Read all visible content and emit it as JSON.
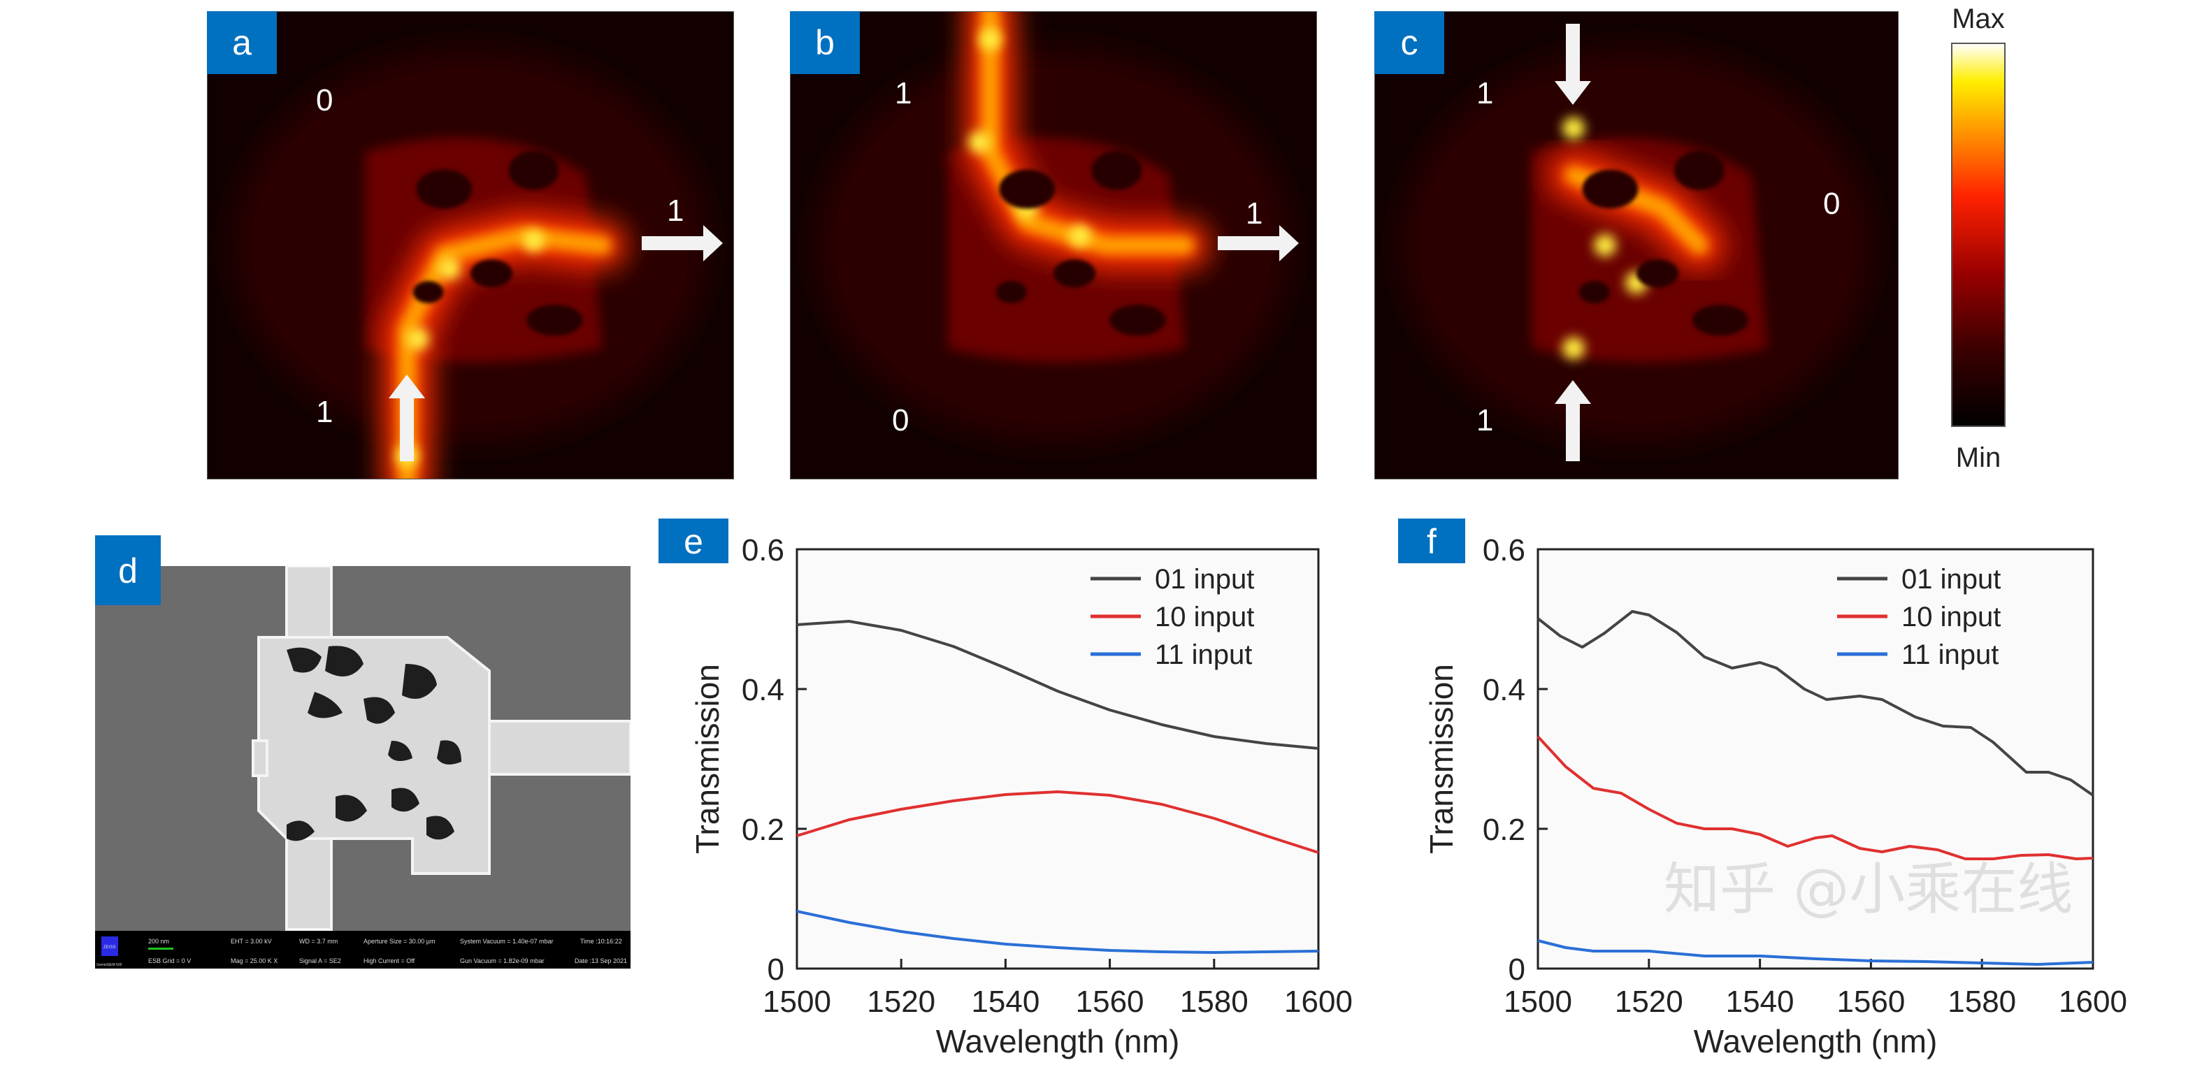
{
  "panels": {
    "a": {
      "label": "a",
      "port_top": "0",
      "port_right": "1",
      "port_bottom": "1",
      "arrows": [
        "up-bottom",
        "right"
      ]
    },
    "b": {
      "label": "b",
      "port_top": "1",
      "port_right": "1",
      "port_bottom": "0",
      "arrows": [
        "right"
      ]
    },
    "c": {
      "label": "c",
      "port_top": "1",
      "port_right": "0",
      "port_bottom": "1",
      "arrows": [
        "down-top",
        "up-bottom"
      ]
    },
    "d": {
      "label": "d"
    },
    "e": {
      "label": "e"
    },
    "f": {
      "label": "f"
    }
  },
  "colorbar": {
    "max_label": "Max",
    "min_label": "Min",
    "colormap": [
      "#000000",
      "#3a0000",
      "#9a0000",
      "#ff2200",
      "#ff8800",
      "#ffee00",
      "#ffffff"
    ]
  },
  "sem_info": {
    "logo": "ZEISS",
    "model": "GeminiSEM 500",
    "scale": "200 nm",
    "eht": "EHT = 3.00 kV",
    "esb": "ESB Grid = 0 V",
    "wd": "WD = 3.7 mm",
    "mag": "Mag = 25.00 K X",
    "signal": "Signal A = SE2",
    "aperture": "Aperture Size = 30.00 µm",
    "high_current": "High Current = Off",
    "sys_vac": "System Vacuum = 1.40e-07 mbar",
    "gun_vac": "Gun Vacuum = 1.82e-09 mbar",
    "time": "Time :10:16:22",
    "date": "Date :13 Sep 2021"
  },
  "watermark": "知乎 @小乘在线",
  "accent_color": "#0070C0",
  "chart_data": [
    {
      "type": "line",
      "panel": "e",
      "xlabel": "Wavelength (nm)",
      "ylabel": "Transmission",
      "xlim": [
        1500,
        1600
      ],
      "ylim": [
        0,
        0.6
      ],
      "xticks": [
        "1500",
        "1520",
        "1540",
        "1560",
        "1580",
        "1600"
      ],
      "yticks": [
        "0",
        "0.2",
        "0.4",
        "0.6"
      ],
      "legend_position": "top-right",
      "grid": false,
      "series": [
        {
          "name": "01 input",
          "color": "#444444",
          "x": [
            1500,
            1510,
            1520,
            1530,
            1540,
            1550,
            1560,
            1570,
            1580,
            1590,
            1600
          ],
          "y": [
            0.492,
            0.497,
            0.484,
            0.461,
            0.43,
            0.397,
            0.37,
            0.349,
            0.332,
            0.322,
            0.315
          ]
        },
        {
          "name": "10 input",
          "color": "#e03030",
          "x": [
            1500,
            1510,
            1520,
            1530,
            1540,
            1550,
            1560,
            1570,
            1580,
            1590,
            1600
          ],
          "y": [
            0.19,
            0.213,
            0.228,
            0.24,
            0.249,
            0.253,
            0.248,
            0.235,
            0.215,
            0.19,
            0.166
          ]
        },
        {
          "name": "11 input",
          "color": "#2a6fd6",
          "x": [
            1500,
            1510,
            1520,
            1530,
            1540,
            1550,
            1560,
            1570,
            1580,
            1590,
            1600
          ],
          "y": [
            0.082,
            0.066,
            0.053,
            0.043,
            0.035,
            0.03,
            0.026,
            0.024,
            0.023,
            0.024,
            0.025
          ]
        }
      ]
    },
    {
      "type": "line",
      "panel": "f",
      "xlabel": "Wavelength (nm)",
      "ylabel": "Transmission",
      "xlim": [
        1500,
        1600
      ],
      "ylim": [
        0,
        0.6
      ],
      "xticks": [
        "1500",
        "1520",
        "1540",
        "1560",
        "1580",
        "1600"
      ],
      "yticks": [
        "0",
        "0.2",
        "0.4",
        "0.6"
      ],
      "legend_position": "top-right",
      "grid": false,
      "series": [
        {
          "name": "01 input",
          "color": "#444444",
          "x": [
            1500,
            1504,
            1508,
            1512,
            1517,
            1520,
            1525,
            1530,
            1535,
            1540,
            1543,
            1548,
            1552,
            1558,
            1562,
            1568,
            1573,
            1578,
            1582,
            1588,
            1592,
            1596,
            1600
          ],
          "y": [
            0.501,
            0.476,
            0.46,
            0.48,
            0.511,
            0.506,
            0.481,
            0.446,
            0.43,
            0.438,
            0.43,
            0.4,
            0.385,
            0.39,
            0.385,
            0.36,
            0.347,
            0.345,
            0.324,
            0.281,
            0.281,
            0.27,
            0.248
          ]
        },
        {
          "name": "10 input",
          "color": "#e03030",
          "x": [
            1500,
            1505,
            1510,
            1515,
            1520,
            1525,
            1530,
            1535,
            1540,
            1545,
            1550,
            1553,
            1558,
            1562,
            1567,
            1572,
            1577,
            1582,
            1587,
            1592,
            1597,
            1600
          ],
          "y": [
            0.332,
            0.289,
            0.258,
            0.251,
            0.228,
            0.208,
            0.2,
            0.2,
            0.192,
            0.175,
            0.187,
            0.19,
            0.172,
            0.167,
            0.175,
            0.17,
            0.157,
            0.157,
            0.162,
            0.163,
            0.157,
            0.158
          ]
        },
        {
          "name": "11 input",
          "color": "#2a6fd6",
          "x": [
            1500,
            1505,
            1510,
            1520,
            1530,
            1540,
            1550,
            1560,
            1570,
            1580,
            1590,
            1600
          ],
          "y": [
            0.04,
            0.03,
            0.025,
            0.025,
            0.018,
            0.018,
            0.014,
            0.011,
            0.01,
            0.008,
            0.006,
            0.009
          ]
        }
      ]
    }
  ]
}
